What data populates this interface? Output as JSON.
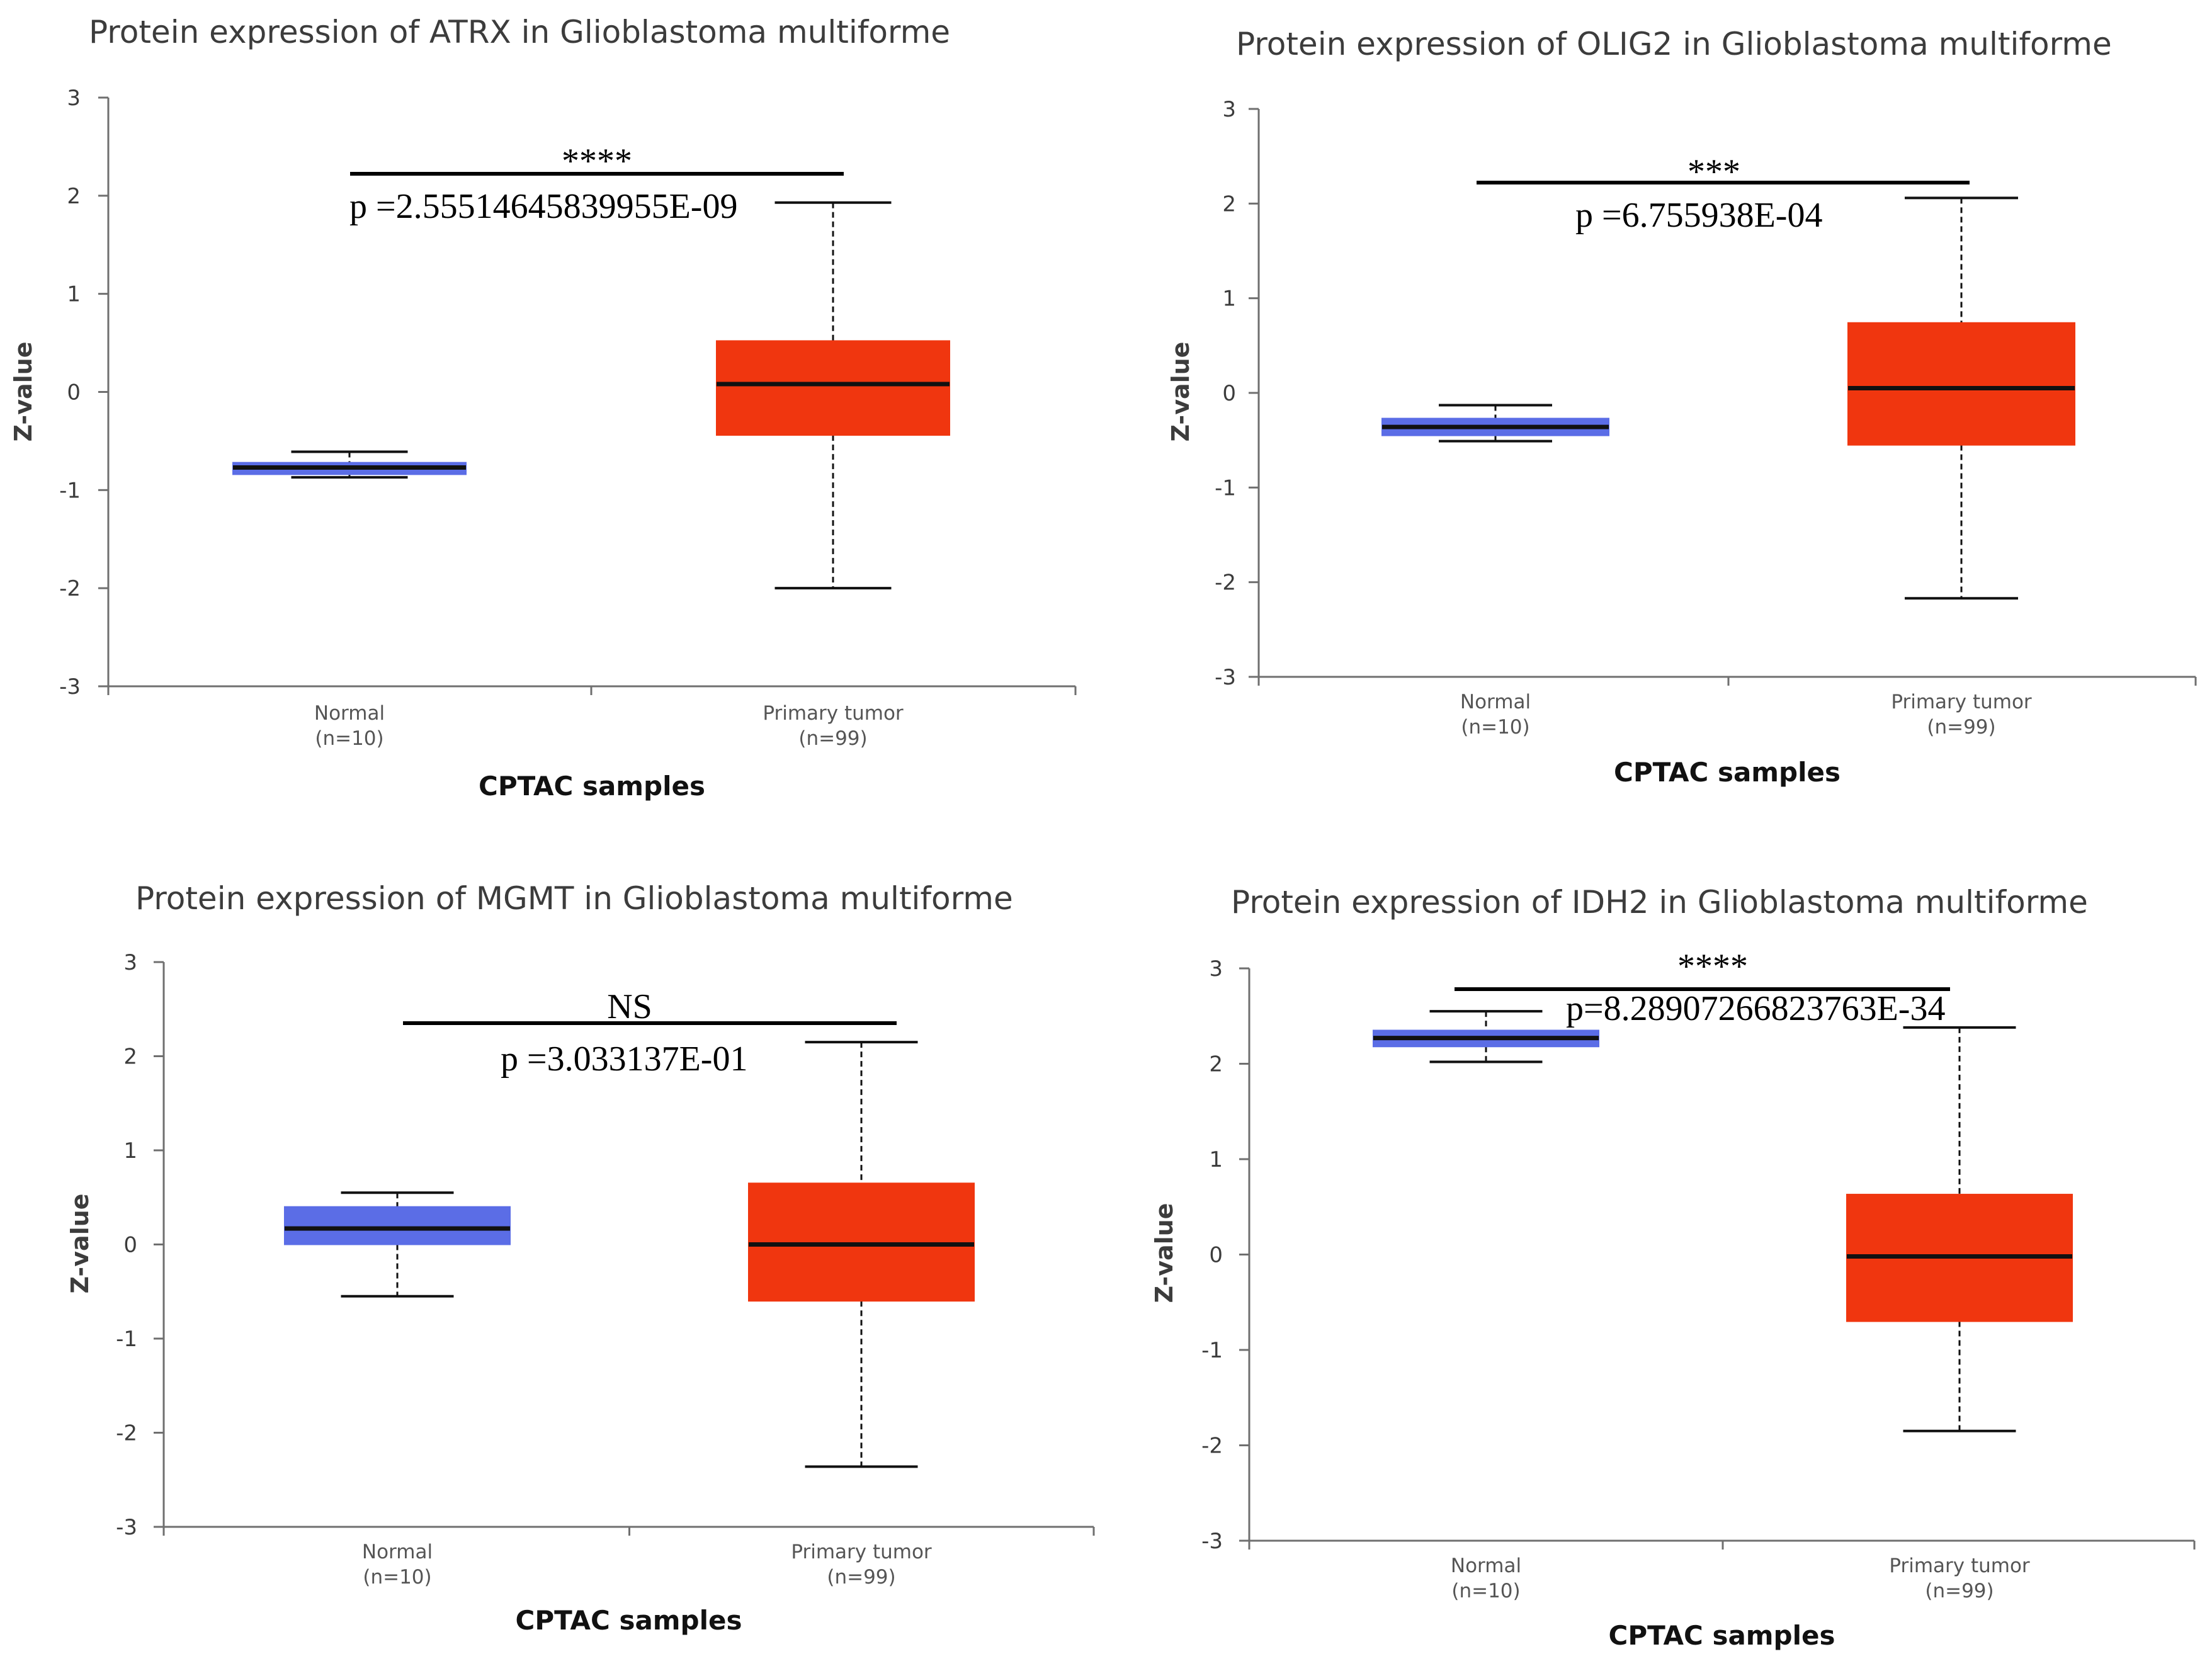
{
  "colors": {
    "normal_box": "#5b6de6",
    "tumor_box": "#f0360f",
    "median": "#111111",
    "axis": "#6f6f6f",
    "text": "#3c3c3c"
  },
  "chart_data": [
    {
      "type": "box",
      "title": "Protein expression of ATRX in Glioblastoma multiforme",
      "xlabel": "CPTAC samples",
      "ylabel": "Z-value",
      "ylim": [
        -3,
        3
      ],
      "yticks": [
        "3",
        "2",
        "1",
        "0",
        "-1",
        "-2",
        "-3"
      ],
      "groups": [
        {
          "name": "Normal",
          "n_label": "(n=10)",
          "min": -0.87,
          "q1": -0.84,
          "median": -0.77,
          "q3": -0.72,
          "max": -0.61
        },
        {
          "name": "Primary tumor",
          "n_label": "(n=99)",
          "min": -2.0,
          "q1": -0.44,
          "median": 0.08,
          "q3": 0.52,
          "max": 1.93
        }
      ],
      "significance": {
        "stars": "****",
        "p_label": "p =2.55514645839955E-09"
      }
    },
    {
      "type": "box",
      "title": "Protein expression of OLIG2 in Glioblastoma multiforme",
      "xlabel": "CPTAC samples",
      "ylabel": "Z-value",
      "ylim": [
        -3,
        3
      ],
      "yticks": [
        "3",
        "2",
        "1",
        "0",
        "-1",
        "-2",
        "-3"
      ],
      "groups": [
        {
          "name": "Normal",
          "n_label": "(n=10)",
          "min": -0.51,
          "q1": -0.45,
          "median": -0.36,
          "q3": -0.27,
          "max": -0.13
        },
        {
          "name": "Primary tumor",
          "n_label": "(n=99)",
          "min": -2.17,
          "q1": -0.55,
          "median": 0.05,
          "q3": 0.74,
          "max": 2.06
        }
      ],
      "significance": {
        "stars": "***",
        "p_label": "p =6.755938E-04"
      }
    },
    {
      "type": "box",
      "title": "Protein expression of MGMT in Glioblastoma multiforme",
      "xlabel": "CPTAC samples",
      "ylabel": "Z-value",
      "ylim": [
        -3,
        3
      ],
      "yticks": [
        "3",
        "2",
        "1",
        "0",
        "-1",
        "-2",
        "-3"
      ],
      "groups": [
        {
          "name": "Normal",
          "n_label": "(n=10)",
          "min": -0.55,
          "q1": 0.0,
          "median": 0.17,
          "q3": 0.4,
          "max": 0.55
        },
        {
          "name": "Primary tumor",
          "n_label": "(n=99)",
          "min": -2.36,
          "q1": -0.6,
          "median": 0.0,
          "q3": 0.65,
          "max": 2.15
        }
      ],
      "significance": {
        "stars": "NS",
        "p_label": "p =3.033137E-01"
      }
    },
    {
      "type": "box",
      "title": "Protein expression of IDH2 in Glioblastoma multiforme",
      "xlabel": "CPTAC samples",
      "ylabel": "Z-value",
      "ylim": [
        -3,
        3
      ],
      "yticks": [
        "3",
        "2",
        "1",
        "0",
        "-1",
        "-2",
        "-3"
      ],
      "groups": [
        {
          "name": "Normal",
          "n_label": "(n=10)",
          "min": 2.02,
          "q1": 2.18,
          "median": 2.27,
          "q3": 2.35,
          "max": 2.55
        },
        {
          "name": "Primary tumor",
          "n_label": "(n=99)",
          "min": -1.85,
          "q1": -0.7,
          "median": -0.02,
          "q3": 0.63,
          "max": 2.38
        }
      ],
      "significance": {
        "stars": "****",
        "p_label": "p=8.28907266823763E-34"
      }
    }
  ]
}
